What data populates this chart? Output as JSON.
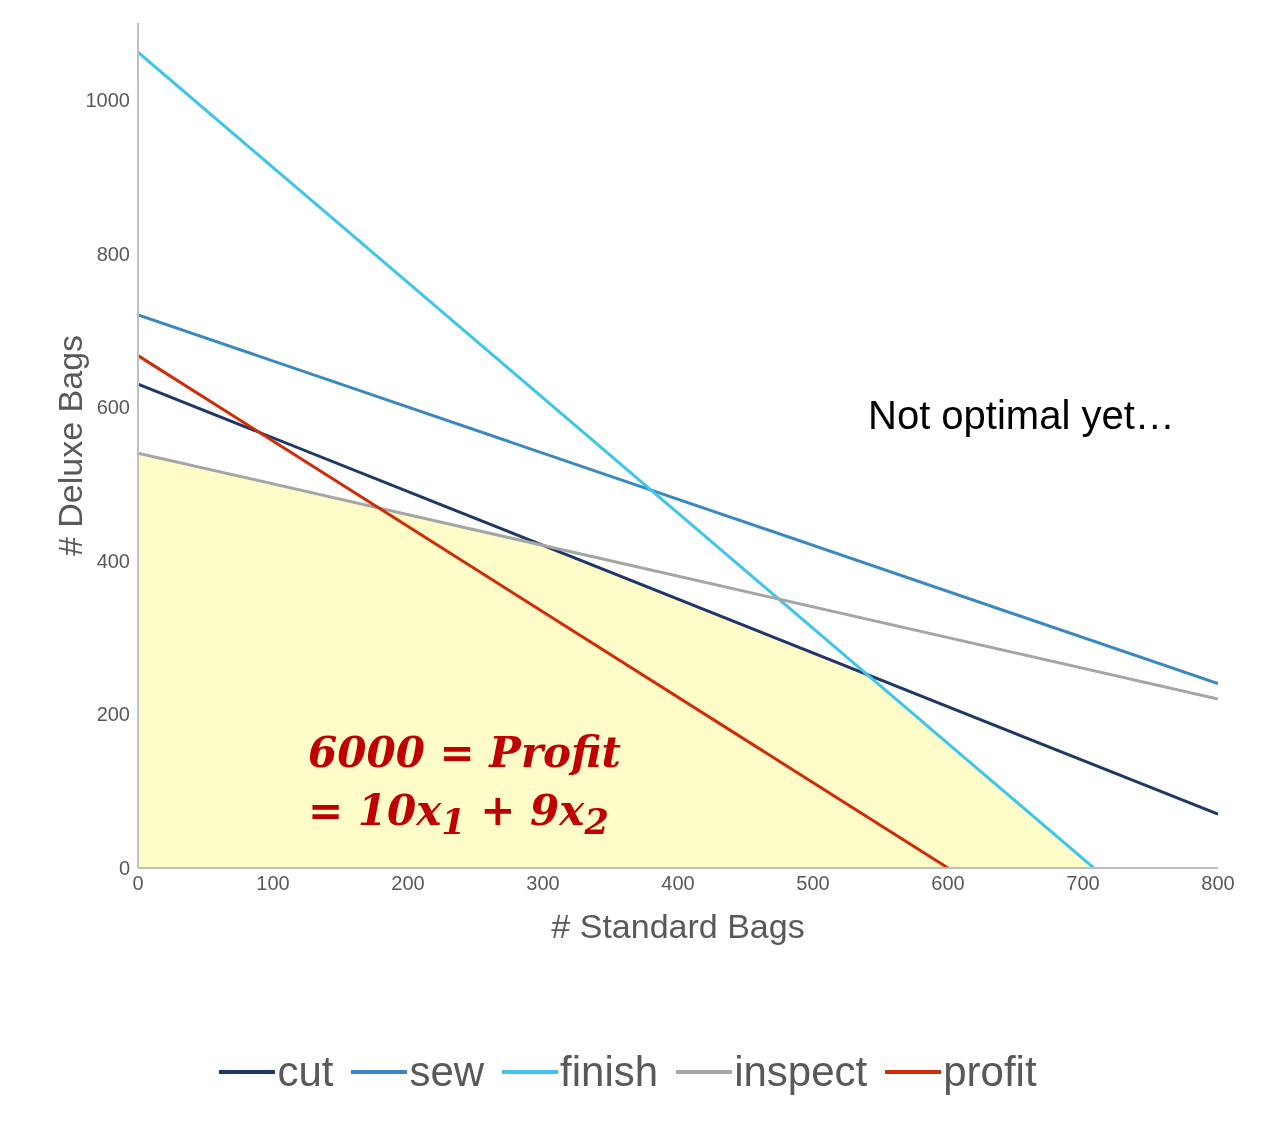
{
  "chart_data": {
    "type": "line",
    "xlabel": "# Standard Bags",
    "ylabel": "# Deluxe Bags",
    "xlim": [
      0,
      800
    ],
    "xticks": [
      0,
      100,
      200,
      300,
      400,
      500,
      600,
      700,
      800
    ],
    "ylim": [
      0,
      1100
    ],
    "yticks": [
      0,
      200,
      400,
      600,
      800,
      1000
    ],
    "legend": "bottom",
    "marker": "none",
    "line_style": "solid",
    "series": [
      {
        "type": "area",
        "color": "#fefcc8",
        "x": [
          0,
          300,
          540,
          708
        ],
        "values": [
          540,
          420,
          252,
          0
        ]
      },
      {
        "name": "cut",
        "color": "#1f3864",
        "x": [
          0,
          800
        ],
        "values": [
          630,
          70
        ]
      },
      {
        "name": "sew",
        "color": "#3a88c0",
        "x": [
          0,
          800
        ],
        "values": [
          720,
          240
        ]
      },
      {
        "name": "finish",
        "color": "#3ec6ea",
        "x": [
          0,
          708
        ],
        "values": [
          1062,
          0
        ]
      },
      {
        "name": "inspect",
        "color": "#a5a5a5",
        "x": [
          0,
          800
        ],
        "values": [
          540,
          220
        ]
      },
      {
        "name": "profit",
        "color": "#d02c0a",
        "x": [
          0,
          600
        ],
        "values": [
          667,
          0
        ]
      }
    ],
    "annotations": [
      "Not optimal yet…",
      "6000 = Profit",
      "= 10x$_{1}$ + 9x$_{2}$"
    ]
  }
}
